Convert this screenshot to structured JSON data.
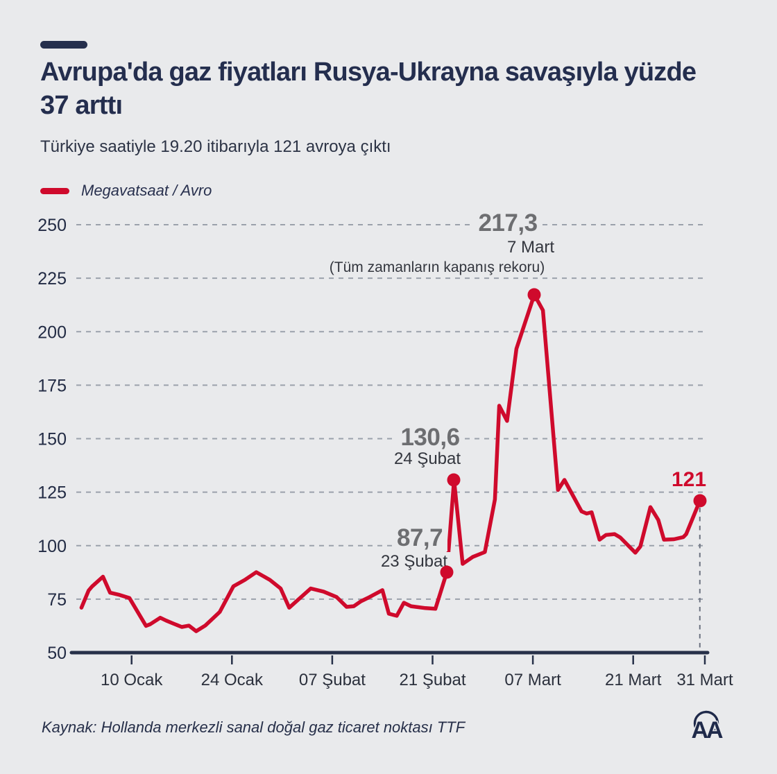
{
  "header": {
    "title": "Avrupa'da gaz fiyatları Rusya-Ukrayna savaşıyla yüzde 37 arttı",
    "subtitle": "Türkiye saatiyle 19.20 itibarıyla 121 avroya çıktı"
  },
  "legend": {
    "label": "Megavatsaat / Avro"
  },
  "footer": {
    "source": "Kaynak: Hollanda merkezli sanal doğal gaz ticaret noktası TTF",
    "logo_text": "AA"
  },
  "colors": {
    "background": "#e9eaec",
    "line_red": "#cf0a2c",
    "navy": "#242e4e",
    "annotation_gray": "#6d6e71",
    "grid_gray": "#9ba1ab"
  },
  "chart_data": {
    "type": "line",
    "series_name": "Megavatsaat / Avro",
    "x_unit": "days since 3 Ocak 2022",
    "ylim": [
      50,
      250
    ],
    "y_ticks": [
      50,
      75,
      100,
      125,
      150,
      175,
      200,
      225,
      250
    ],
    "x_ticks": [
      {
        "day": 7,
        "label": "10 Ocak"
      },
      {
        "day": 21,
        "label": "24 Ocak"
      },
      {
        "day": 35,
        "label": "07 Şubat"
      },
      {
        "day": 49,
        "label": "21 Şubat"
      },
      {
        "day": 63,
        "label": "07 Mart"
      },
      {
        "day": 77,
        "label": "21 Mart"
      },
      {
        "day": 87,
        "label": "31 Mart"
      }
    ],
    "points": [
      [
        0,
        71
      ],
      [
        1,
        79
      ],
      [
        1.5,
        81
      ],
      [
        3,
        85.5
      ],
      [
        4,
        78
      ],
      [
        5.3,
        77
      ],
      [
        6.7,
        75.5
      ],
      [
        9,
        62.5
      ],
      [
        9.6,
        63.3
      ],
      [
        11,
        66.3
      ],
      [
        11.8,
        65
      ],
      [
        12.8,
        63.6
      ],
      [
        14,
        62
      ],
      [
        15,
        62.6
      ],
      [
        16,
        60
      ],
      [
        17.3,
        62.7
      ],
      [
        19.3,
        69
      ],
      [
        21.2,
        81
      ],
      [
        22.8,
        84
      ],
      [
        24.4,
        87.6
      ],
      [
        26.3,
        84
      ],
      [
        27.8,
        80
      ],
      [
        29,
        71
      ],
      [
        32,
        80
      ],
      [
        33.8,
        78.5
      ],
      [
        35.6,
        76
      ],
      [
        37,
        71.4
      ],
      [
        38,
        71.7
      ],
      [
        39,
        74
      ],
      [
        40,
        75.6
      ],
      [
        42,
        79.2
      ],
      [
        42.9,
        68.2
      ],
      [
        44,
        67.2
      ],
      [
        45,
        73.3
      ],
      [
        46,
        71.7
      ],
      [
        48,
        70.8
      ],
      [
        49.4,
        70.5
      ],
      [
        51,
        87.7
      ],
      [
        52,
        130.6
      ],
      [
        53.2,
        91.5
      ],
      [
        54.6,
        94.7
      ],
      [
        56.3,
        97
      ],
      [
        57.7,
        121.6
      ],
      [
        58.3,
        165.4
      ],
      [
        59.4,
        158.3
      ],
      [
        60.7,
        192
      ],
      [
        63.2,
        217.3
      ],
      [
        64.4,
        210
      ],
      [
        66.5,
        126
      ],
      [
        67.4,
        130.7
      ],
      [
        69.8,
        116
      ],
      [
        70.5,
        115
      ],
      [
        71.2,
        115.6
      ],
      [
        72.3,
        102.8
      ],
      [
        73.2,
        105
      ],
      [
        74.4,
        105.4
      ],
      [
        75.2,
        103.8
      ],
      [
        77.3,
        96.7
      ],
      [
        78,
        99.6
      ],
      [
        79.4,
        118
      ],
      [
        80.5,
        112
      ],
      [
        81.3,
        102.8
      ],
      [
        82.7,
        103
      ],
      [
        84,
        104
      ],
      [
        84.4,
        105.4
      ],
      [
        86.3,
        121
      ]
    ],
    "markers": [
      {
        "day": 51,
        "value": 87.7,
        "value_label": "87,7",
        "date_label": "23 Şubat"
      },
      {
        "day": 52,
        "value": 130.6,
        "value_label": "130,6",
        "date_label": "24 Şubat"
      },
      {
        "day": 63.2,
        "value": 217.3,
        "value_label": "217,3",
        "date_label": "7 Mart",
        "note": "(Tüm zamanların kapanış rekoru)"
      },
      {
        "day": 86.3,
        "value": 121,
        "value_label": "121",
        "date_label": "31 Mart",
        "drop_line": true
      }
    ]
  }
}
